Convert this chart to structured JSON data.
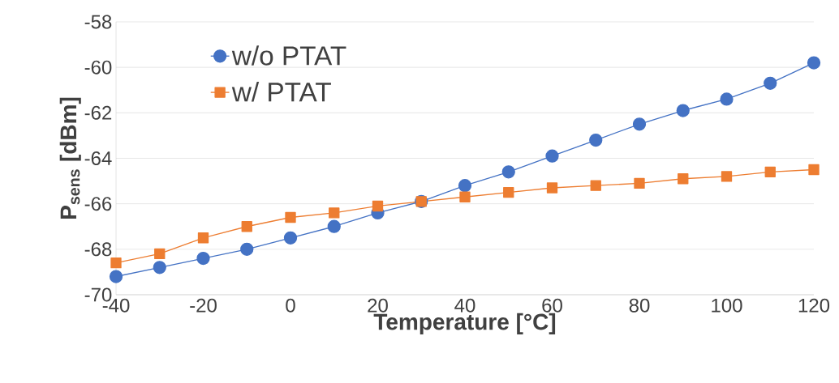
{
  "chart_data": {
    "type": "line",
    "xlabel": "Temperature [°C]",
    "ylabel": "P$_{sens}$ [dBm]",
    "x": [
      -40,
      -30,
      -20,
      -10,
      0,
      10,
      20,
      30,
      40,
      50,
      60,
      70,
      80,
      90,
      100,
      110,
      120
    ],
    "series": [
      {
        "name": "w/o PTAT",
        "color": "#4472c4",
        "marker": "circle",
        "values": [
          -69.2,
          -68.8,
          -68.4,
          -68.0,
          -67.5,
          -67.0,
          -66.4,
          -65.9,
          -65.2,
          -64.6,
          -63.9,
          -63.2,
          -62.5,
          -61.9,
          -61.4,
          -60.7,
          -59.8
        ]
      },
      {
        "name": "w/ PTAT",
        "color": "#ed7d31",
        "marker": "square",
        "values": [
          -68.6,
          -68.2,
          -67.5,
          -67.0,
          -66.6,
          -66.4,
          -66.1,
          -65.9,
          -65.7,
          -65.5,
          -65.3,
          -65.2,
          -65.1,
          -64.9,
          -64.8,
          -64.6,
          -64.5
        ]
      }
    ],
    "xlim": [
      -40,
      120
    ],
    "xticks": [
      -40,
      -20,
      0,
      20,
      40,
      60,
      80,
      100,
      120
    ],
    "ylim": [
      -70,
      -58
    ],
    "yticks": [
      -70,
      -68,
      -66,
      -64,
      -62,
      -60,
      -58
    ],
    "grid": "y",
    "legend": "top left",
    "line_style": "solid"
  }
}
